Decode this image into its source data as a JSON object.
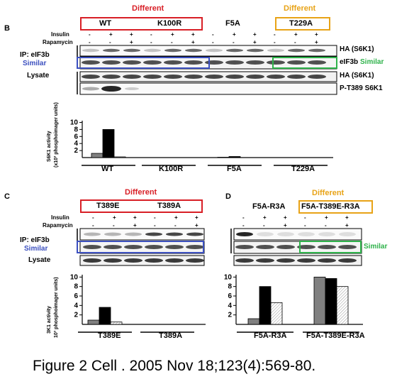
{
  "panelB": {
    "letter": "B",
    "different_left": "Different",
    "different_right": "Different",
    "groups": [
      "WT",
      "K100R",
      "F5A",
      "T229A"
    ],
    "insulin_label": "Insulin",
    "rapamycin_label": "Rapamycin",
    "insulin_signs": [
      "-",
      "+",
      "+",
      "-",
      "+",
      "+",
      "-",
      "+",
      "+",
      "-",
      "+",
      "+"
    ],
    "rapamycin_signs": [
      "-",
      "-",
      "+",
      "-",
      "-",
      "+",
      "-",
      "-",
      "+",
      "-",
      "-",
      "+"
    ],
    "ip_label": "IP: eIF3b",
    "similar_left": "Similar",
    "similar_right": "Similar",
    "lysate_label": "Lysate",
    "band_labels": [
      "HA (S6K1)",
      "eIF3b",
      "HA (S6K1)",
      "P-T389 S6K1"
    ],
    "ylabel_line1": "S6K1 activity",
    "ylabel_line2": "(x10³ phosphoimager units)"
  },
  "panelC": {
    "letter": "C",
    "different": "Different",
    "groups": [
      "T389E",
      "T389A"
    ],
    "insulin_label": "Insulin",
    "rapamycin_label": "Rapamycin",
    "insulin_signs": [
      "-",
      "+",
      "+",
      "-",
      "+",
      "+"
    ],
    "rapamycin_signs": [
      "-",
      "-",
      "+",
      "-",
      "-",
      "+"
    ],
    "ip_label": "IP: eIF3b",
    "similar": "Similar",
    "lysate_label": "Lysate",
    "ylabel_line1": "3K1 activity",
    "ylabel_line2": "10³ phosphoimager units)"
  },
  "panelD": {
    "letter": "D",
    "different": "Different",
    "groups": [
      "F5A-R3A",
      "F5A-T389E-R3A"
    ],
    "insulin_signs": [
      "-",
      "+",
      "+",
      "-",
      "+",
      "+"
    ],
    "rapamycin_signs": [
      "-",
      "-",
      "+",
      "-",
      "-",
      "+"
    ],
    "similar": "Similar"
  },
  "caption": "Figure 2 Cell . 2005 Nov 18;123(4):569-80.",
  "colors": {
    "red": "#d81f26",
    "gold": "#e8a317",
    "blue": "#3b4fbf",
    "green": "#2eb24a",
    "bar_gray": "#808080",
    "bar_black": "#000000",
    "bar_hatch": "#cccccc"
  },
  "chart_data": [
    {
      "type": "bar",
      "panel": "B",
      "categories": [
        "WT",
        "K100R",
        "F5A",
        "T229A"
      ],
      "series": [
        {
          "values": [
            1.2,
            0,
            0.1,
            0
          ]
        },
        {
          "values": [
            8.0,
            0,
            0.3,
            0
          ]
        },
        {
          "values": [
            0.2,
            0,
            0,
            0
          ]
        }
      ],
      "yticks": [
        2,
        4,
        6,
        8,
        10
      ],
      "ylim": [
        0,
        10.5
      ]
    },
    {
      "type": "bar",
      "panel": "C",
      "categories": [
        "T389E",
        "T389A"
      ],
      "series": [
        {
          "values": [
            0.9,
            0
          ]
        },
        {
          "values": [
            3.6,
            0
          ]
        },
        {
          "values": [
            0.5,
            0
          ]
        }
      ],
      "yticks": [
        2,
        4,
        6,
        8,
        10
      ],
      "ylim": [
        0,
        10.5
      ]
    },
    {
      "type": "bar",
      "panel": "D",
      "categories": [
        "F5A-R3A",
        "F5A-T389E-R3A"
      ],
      "series": [
        {
          "values": [
            1.2,
            10.0
          ]
        },
        {
          "values": [
            8.0,
            9.7
          ]
        },
        {
          "values": [
            4.6,
            8.0
          ]
        }
      ],
      "yticks": [
        2,
        4,
        6,
        8,
        10
      ],
      "ylim": [
        0,
        10.5
      ]
    }
  ]
}
